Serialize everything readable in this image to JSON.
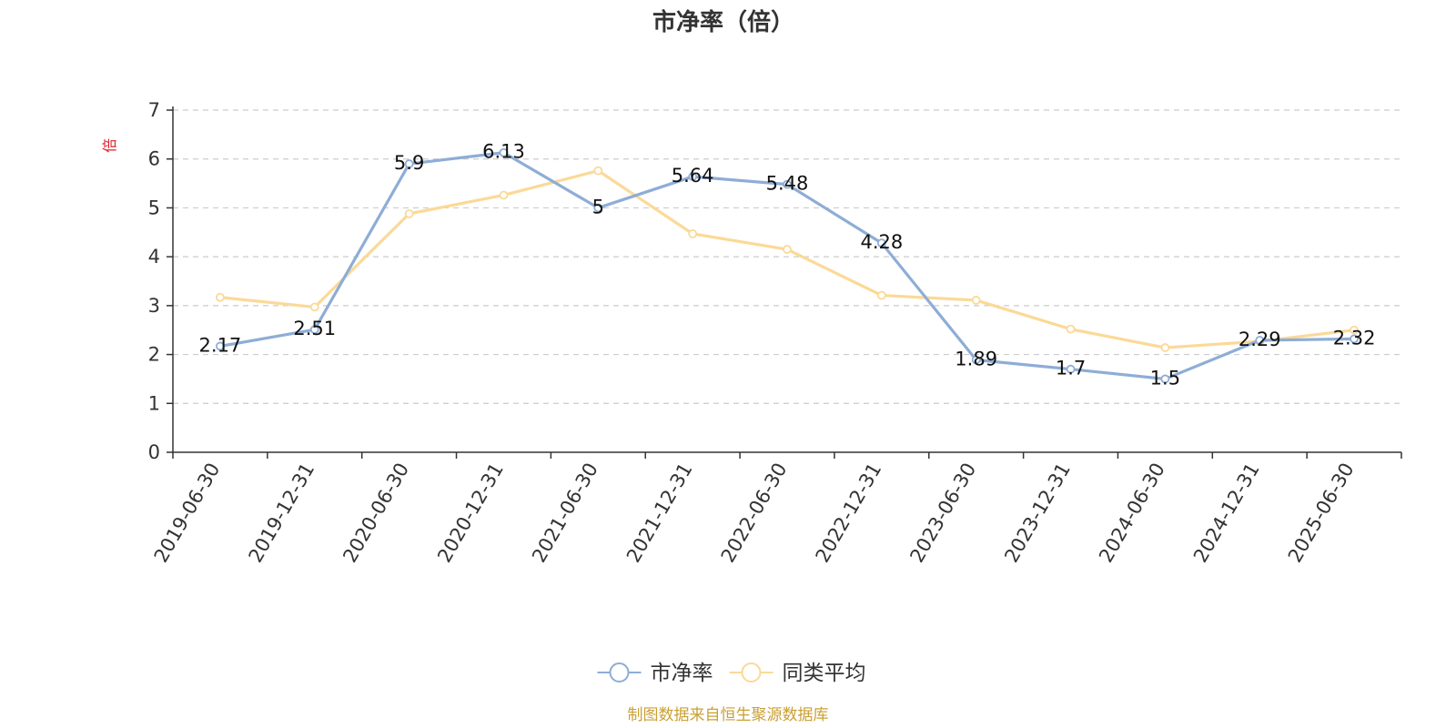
{
  "chart_data": {
    "type": "line",
    "title": "市净率（倍）",
    "ylabel": "倍",
    "xlabel": "",
    "categories": [
      "2019-06-30",
      "2019-12-31",
      "2020-06-30",
      "2020-12-31",
      "2021-06-30",
      "2021-12-31",
      "2022-06-30",
      "2022-12-31",
      "2023-06-30",
      "2023-12-31",
      "2024-06-30",
      "2024-12-31",
      "2025-06-30"
    ],
    "ylim": [
      0,
      7
    ],
    "yticks": [
      0,
      1,
      2,
      3,
      4,
      5,
      6,
      7
    ],
    "grid": "horizontal dashed",
    "legend_position": "bottom-center",
    "series": [
      {
        "name": "市净率",
        "color": "#8eadd6",
        "show_labels": true,
        "values": [
          2.17,
          2.51,
          5.9,
          6.13,
          5,
          5.64,
          5.48,
          4.28,
          1.89,
          1.7,
          1.5,
          2.29,
          2.32
        ]
      },
      {
        "name": "同类平均",
        "color": "#fbd997",
        "show_labels": false,
        "values": [
          3.17,
          2.97,
          4.88,
          5.26,
          5.76,
          4.47,
          4.15,
          3.21,
          3.11,
          2.52,
          2.14,
          2.27,
          2.5
        ]
      }
    ]
  },
  "source_text": "制图数据来自恒生聚源数据库",
  "colors": {
    "axis": "#333333",
    "grid": "#cccccc",
    "ylabel": "#e0202a",
    "source": "#c9a033"
  }
}
